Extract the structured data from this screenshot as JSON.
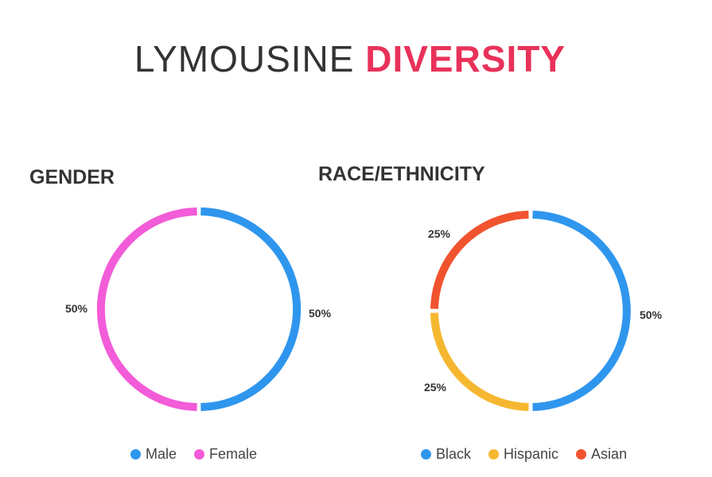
{
  "title": {
    "part1": "LYMOUSINE",
    "part2": "DIVERSITY",
    "accent_color": "#E8325A"
  },
  "chart_data": [
    {
      "type": "pie",
      "variant": "donut",
      "title": "GENDER",
      "categories": [
        "Male",
        "Female"
      ],
      "values": [
        50,
        50
      ],
      "value_labels": [
        "50%",
        "50%"
      ],
      "colors": [
        "#2F96EE",
        "#F25CD8"
      ],
      "legend_position": "bottom"
    },
    {
      "type": "pie",
      "variant": "donut",
      "title": "RACE/ETHNICITY",
      "categories": [
        "Black",
        "Hispanic",
        "Asian"
      ],
      "values": [
        50,
        25,
        25
      ],
      "value_labels": [
        "50%",
        "25%",
        "25%"
      ],
      "colors": [
        "#2F96EE",
        "#F6B730",
        "#F1532F"
      ],
      "legend_position": "bottom"
    }
  ]
}
